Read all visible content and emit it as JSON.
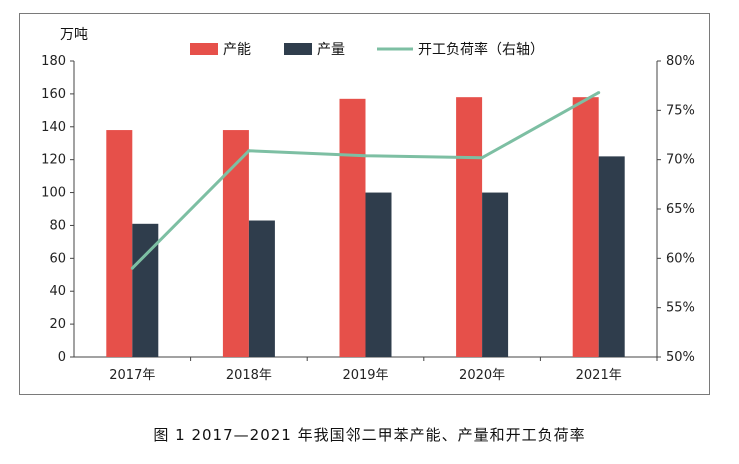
{
  "caption": "图 1 2017—2021 年我国邻二甲苯产能、产量和开工负荷率",
  "colors": {
    "capacity": "#e6504a",
    "output": "#2f3d4c",
    "load_rate": "#7dbfa3",
    "axis": "#444444",
    "frame": "#7a7a7a"
  },
  "chart_data": {
    "type": "bar",
    "categories": [
      "2017年",
      "2018年",
      "2019年",
      "2020年",
      "2021年"
    ],
    "left_axis_unit": "万吨",
    "ylim": [
      0,
      180
    ],
    "yticks": [
      "0",
      "20",
      "40",
      "60",
      "80",
      "100",
      "120",
      "140",
      "160",
      "180"
    ],
    "y2lim": [
      50,
      80
    ],
    "y2ticks": [
      "50%",
      "55%",
      "60%",
      "65%",
      "70%",
      "75%",
      "80%"
    ],
    "legend_position": "top-center",
    "grid": false,
    "series": [
      {
        "name": "产能",
        "type": "bar",
        "axis": "left",
        "values": [
          138,
          138,
          157,
          158,
          158
        ]
      },
      {
        "name": "产量",
        "type": "bar",
        "axis": "left",
        "values": [
          81,
          83,
          100,
          100,
          122
        ]
      },
      {
        "name": "开工负荷率（右轴）",
        "type": "line",
        "axis": "right",
        "values": [
          59.0,
          70.9,
          70.4,
          70.2,
          76.8
        ]
      }
    ]
  }
}
